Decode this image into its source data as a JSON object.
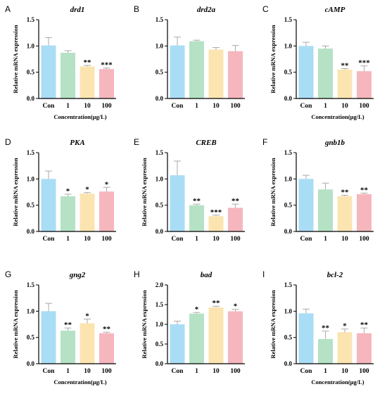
{
  "colors": [
    "#a9ddf5",
    "#b5e2c5",
    "#fbe4b0",
    "#f6b6bd"
  ],
  "error_color": "#aaaaaa",
  "chart_data": [
    {
      "panel": "A",
      "type": "bar",
      "title": "drd1",
      "categories": [
        "Con",
        "1",
        "10",
        "100"
      ],
      "values": [
        1.01,
        0.87,
        0.61,
        0.56
      ],
      "errors": [
        0.15,
        0.04,
        0.02,
        0.02
      ],
      "significance": [
        "",
        "",
        "**",
        "***"
      ],
      "ylabel": "Relative mRNA expression",
      "xlabel": "Concentration(μg/L)",
      "ylim": [
        0,
        1.5
      ],
      "yticks": [
        0,
        0.5,
        1.0,
        1.5
      ],
      "ytick_labels": [
        "0.0",
        "0.5",
        "1.0",
        "1.5"
      ]
    },
    {
      "panel": "B",
      "type": "bar",
      "title": "drd2a",
      "categories": [
        "Con",
        "1",
        "10",
        "100"
      ],
      "values": [
        1.01,
        1.09,
        0.93,
        0.9
      ],
      "errors": [
        0.16,
        0.02,
        0.04,
        0.11
      ],
      "significance": [
        "",
        "",
        "",
        ""
      ],
      "ylabel": "",
      "xlabel": "",
      "ylim": [
        0,
        1.5
      ],
      "yticks": [
        0,
        0.5,
        1.0,
        1.5
      ],
      "ytick_labels": [
        "0.0",
        "0.5",
        "1.0",
        "1.5"
      ]
    },
    {
      "panel": "C",
      "type": "bar",
      "title": "cAMP",
      "categories": [
        "Con",
        "1",
        "10",
        "100"
      ],
      "values": [
        1.0,
        0.95,
        0.55,
        0.52
      ],
      "errors": [
        0.07,
        0.05,
        0.02,
        0.1
      ],
      "significance": [
        "",
        "",
        "**",
        "***"
      ],
      "ylabel": "Relative mRNA expression",
      "xlabel": "Concentration(μg/L)",
      "ylim": [
        0,
        1.5
      ],
      "yticks": [
        0,
        0.5,
        1.0,
        1.5
      ],
      "ytick_labels": [
        "0.0",
        "0.5",
        "1.0",
        "1.5"
      ]
    },
    {
      "panel": "D",
      "type": "bar",
      "title": "PKA",
      "categories": [
        "Con",
        "1",
        "10",
        "100"
      ],
      "values": [
        1.0,
        0.67,
        0.72,
        0.76
      ],
      "errors": [
        0.15,
        0.04,
        0.02,
        0.08
      ],
      "significance": [
        "",
        "*",
        "*",
        "*"
      ],
      "ylabel": "Relative mRNA expression",
      "xlabel": "",
      "ylim": [
        0,
        1.5
      ],
      "yticks": [
        0,
        0.5,
        1.0,
        1.5
      ],
      "ytick_labels": [
        "0.0",
        "0.5",
        "1.0",
        "1.5"
      ]
    },
    {
      "panel": "E",
      "type": "bar",
      "title": "CREB",
      "categories": [
        "Con",
        "1",
        "10",
        "100"
      ],
      "values": [
        1.07,
        0.5,
        0.29,
        0.45
      ],
      "errors": [
        0.27,
        0.02,
        0.02,
        0.07
      ],
      "significance": [
        "",
        "**",
        "***",
        "**"
      ],
      "ylabel": "Relative mRNA expression",
      "xlabel": "",
      "ylim": [
        0,
        1.5
      ],
      "yticks": [
        0,
        0.5,
        1.0,
        1.5
      ],
      "ytick_labels": [
        "0.0",
        "0.5",
        "1.0",
        "1.5"
      ]
    },
    {
      "panel": "F",
      "type": "bar",
      "title": "gnb1b",
      "categories": [
        "Con",
        "1",
        "10",
        "100"
      ],
      "values": [
        1.0,
        0.8,
        0.67,
        0.71
      ],
      "errors": [
        0.07,
        0.12,
        0.02,
        0.02
      ],
      "significance": [
        "",
        "",
        "**",
        "**"
      ],
      "ylabel": "Relative mRNA expression",
      "xlabel": "",
      "ylim": [
        0,
        1.5
      ],
      "yticks": [
        0,
        0.5,
        1.0,
        1.5
      ],
      "ytick_labels": [
        "0.0",
        "0.5",
        "1.0",
        "1.5"
      ]
    },
    {
      "panel": "G",
      "type": "bar",
      "title": "gng2",
      "categories": [
        "Con",
        "1",
        "10",
        "100"
      ],
      "values": [
        1.0,
        0.63,
        0.77,
        0.58
      ],
      "errors": [
        0.15,
        0.05,
        0.08,
        0.02
      ],
      "significance": [
        "",
        "**",
        "*",
        "**"
      ],
      "ylabel": "Relative mRNA expression",
      "xlabel": "Concentration(μg/L)",
      "ylim": [
        0,
        1.5
      ],
      "yticks": [
        0,
        0.5,
        1.0,
        1.5
      ],
      "ytick_labels": [
        "0.0",
        "0.5",
        "1.0",
        "1.5"
      ]
    },
    {
      "panel": "H",
      "type": "bar",
      "title": "bad",
      "categories": [
        "Con",
        "1",
        "10",
        "100"
      ],
      "values": [
        1.0,
        1.27,
        1.43,
        1.33
      ],
      "errors": [
        0.08,
        0.03,
        0.03,
        0.05
      ],
      "significance": [
        "",
        "*",
        "**",
        "*"
      ],
      "ylabel": "Relative mRNA expression",
      "xlabel": "",
      "ylim": [
        0,
        2.0
      ],
      "yticks": [
        0,
        0.5,
        1.0,
        1.5,
        2.0
      ],
      "ytick_labels": [
        "0.0",
        "0.5",
        "1.0",
        "1.5",
        "2.0"
      ]
    },
    {
      "panel": "I",
      "type": "bar",
      "title": "bcl-2",
      "categories": [
        "Con",
        "1",
        "10",
        "100"
      ],
      "values": [
        0.96,
        0.47,
        0.6,
        0.58
      ],
      "errors": [
        0.08,
        0.15,
        0.06,
        0.1
      ],
      "significance": [
        "",
        "**",
        "*",
        "**"
      ],
      "ylabel": "Relative mRNA expression",
      "xlabel": "Concentration(μg/L)",
      "ylim": [
        0,
        1.5
      ],
      "yticks": [
        0,
        0.5,
        1.0,
        1.5
      ],
      "ytick_labels": [
        "0.0",
        "0.5",
        "1.0",
        "1.5"
      ]
    }
  ]
}
